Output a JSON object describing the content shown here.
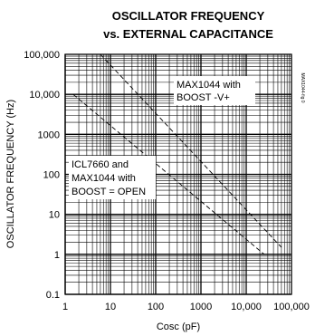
{
  "chart_data": {
    "type": "line",
    "title": "OSCILLATOR FREQUENCY",
    "subtitle": "vs. EXTERNAL CAPACITANCE",
    "xlabel": "Cosc (pF)",
    "ylabel": "OSCILLATOR FREQUENCY (Hz)",
    "x_scale": "log",
    "y_scale": "log",
    "xlim": [
      1,
      100000
    ],
    "ylim": [
      0.1,
      100000
    ],
    "grid": true,
    "x_ticks": [
      {
        "value": 1,
        "label": "1"
      },
      {
        "value": 10,
        "label": "10"
      },
      {
        "value": 100,
        "label": "100"
      },
      {
        "value": 1000,
        "label": "1000"
      },
      {
        "value": 10000,
        "label": "10,000"
      },
      {
        "value": 100000,
        "label": "100,000"
      }
    ],
    "y_ticks": [
      {
        "value": 100000,
        "label": "100,000"
      },
      {
        "value": 10000,
        "label": "10,000"
      },
      {
        "value": 1000,
        "label": "1000"
      },
      {
        "value": 100,
        "label": "100"
      },
      {
        "value": 10,
        "label": "10"
      },
      {
        "value": 1,
        "label": "1"
      },
      {
        "value": 0.1,
        "label": "0.1"
      }
    ],
    "series": [
      {
        "name": "MAX1044 with BOOST -V+",
        "style": "dashed",
        "x": [
          6,
          60000
        ],
        "y": [
          100000,
          1.5
        ]
      },
      {
        "name": "ICL7660 and MAX1044 with BOOST = OPEN",
        "style": "dashed",
        "x": [
          1.5,
          25000
        ],
        "y": [
          10000,
          1
        ]
      }
    ],
    "annotations": [
      {
        "lines": [
          "MAX1044 with",
          "BOOST -V+"
        ]
      },
      {
        "lines": [
          "ICL7660 and",
          "MAX1044 with",
          "BOOST = OPEN"
        ]
      },
      {
        "lines": [
          "MAX1044-fig 0"
        ]
      }
    ]
  }
}
